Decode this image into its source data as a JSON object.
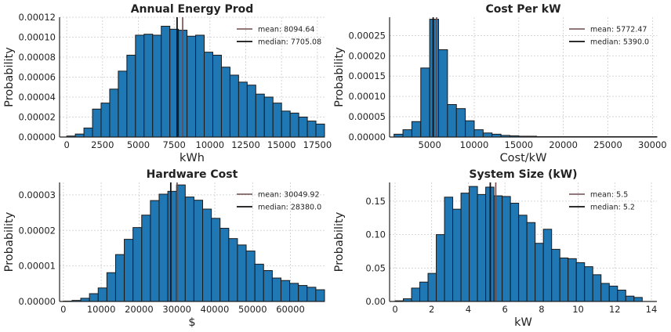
{
  "chart_data": [
    {
      "type": "histogram",
      "title": "Annual Energy Prod",
      "xlabel": "kWh",
      "ylabel": "Probability",
      "xlim": [
        -500,
        18000
      ],
      "ylim": [
        0,
        0.00012
      ],
      "xticks": [
        0,
        2500,
        5000,
        7500,
        10000,
        12500,
        15000,
        17500
      ],
      "xtick_labels": [
        "0",
        "2500",
        "5000",
        "7500",
        "10000",
        "12500",
        "15000",
        "17500"
      ],
      "yticks": [
        0,
        2e-05,
        4e-05,
        6e-05,
        8e-05,
        0.0001,
        0.00012
      ],
      "ytick_labels": [
        "0.00000",
        "0.00002",
        "0.00004",
        "0.00006",
        "0.00008",
        "0.00010",
        "0.00012"
      ],
      "bin_edges": [
        0,
        600,
        1200,
        1800,
        2400,
        3000,
        3600,
        4200,
        4800,
        5400,
        6000,
        6600,
        7200,
        7800,
        8400,
        9000,
        9600,
        10200,
        10800,
        11400,
        12000,
        12600,
        13200,
        13800,
        14400,
        15000,
        15600,
        16200,
        16800,
        17400,
        18000
      ],
      "values": [
        1e-06,
        3e-06,
        9e-06,
        2.8e-05,
        3.4e-05,
        4.8e-05,
        6.6e-05,
        8.2e-05,
        0.000102,
        0.000103,
        0.000102,
        0.000111,
        0.000108,
        0.000107,
        0.000101,
        0.000102,
        8.5e-05,
        8.2e-05,
        7e-05,
        6.2e-05,
        5.5e-05,
        5.2e-05,
        4.3e-05,
        4e-05,
        3.4e-05,
        2.6e-05,
        2.4e-05,
        2e-05,
        1.6e-05,
        1.3e-05
      ],
      "mean": 8094.64,
      "median": 7705.08,
      "legend": {
        "mean_label": "mean: 8094.64",
        "median_label": "median: 7705.08",
        "placement": "top-right"
      },
      "grid": true
    },
    {
      "type": "histogram",
      "title": "Cost Per kW",
      "xlabel": "Cost/kW",
      "ylabel": "Probability",
      "xlim": [
        500,
        30500
      ],
      "ylim": [
        0,
        0.000295
      ],
      "xticks": [
        5000,
        10000,
        15000,
        20000,
        25000,
        30000
      ],
      "xtick_labels": [
        "5000",
        "10000",
        "15000",
        "20000",
        "25000",
        "30000"
      ],
      "yticks": [
        0,
        5e-05,
        0.0001,
        0.00015,
        0.0002,
        0.00025
      ],
      "ytick_labels": [
        "0.00000",
        "0.00005",
        "0.00010",
        "0.00015",
        "0.00020",
        "0.00025"
      ],
      "bin_edges": [
        1000,
        2000,
        3000,
        4000,
        5000,
        6000,
        7000,
        8000,
        9000,
        10000,
        11000,
        12000,
        13000,
        14000,
        15000,
        16000,
        17000,
        18000,
        19000,
        20000,
        21000,
        22000,
        23000,
        24000,
        25000,
        26000,
        27000,
        28000,
        29000,
        30000,
        30500
      ],
      "values": [
        7e-06,
        1.8e-05,
        3.8e-05,
        0.00017,
        0.00029,
        0.000215,
        8e-05,
        7e-05,
        4e-05,
        1.8e-05,
        1e-05,
        7e-06,
        4e-06,
        3e-06,
        2e-06,
        2e-06,
        1e-06,
        1e-06,
        1e-06,
        1e-06,
        1e-06,
        1e-06,
        1e-06,
        1e-06,
        1e-06,
        1e-06,
        1e-06,
        1e-06,
        1e-06,
        1e-06
      ],
      "mean": 5772.47,
      "median": 5390.0,
      "legend": {
        "mean_label": "mean: 5772.47",
        "median_label": "median: 5390.0",
        "placement": "top-right"
      },
      "grid": true
    },
    {
      "type": "histogram",
      "title": "Hardware Cost",
      "xlabel": "$",
      "ylabel": "Probability",
      "xlim": [
        -1000,
        69000
      ],
      "ylim": [
        0,
        3.35e-05
      ],
      "xticks": [
        0,
        10000,
        20000,
        30000,
        40000,
        50000,
        60000
      ],
      "xtick_labels": [
        "0",
        "10000",
        "20000",
        "30000",
        "40000",
        "50000",
        "60000"
      ],
      "yticks": [
        0,
        1e-05,
        2e-05,
        3e-05
      ],
      "ytick_labels": [
        "0.00000",
        "0.00001",
        "0.00002",
        "0.00003"
      ],
      "bin_edges": [
        0,
        2300,
        4600,
        6900,
        9200,
        11500,
        13800,
        16100,
        18400,
        20700,
        23000,
        25300,
        27600,
        29900,
        32200,
        34500,
        36800,
        39100,
        41400,
        43700,
        46000,
        48300,
        50600,
        52900,
        55200,
        57500,
        59800,
        62100,
        64400,
        66700,
        69000
      ],
      "values": [
        1e-07,
        3e-07,
        9e-07,
        2.2e-06,
        3.8e-06,
        8.1e-06,
        1.32e-05,
        1.75e-05,
        2.08e-05,
        2.43e-05,
        2.84e-05,
        3.02e-05,
        3.1e-05,
        3.28e-05,
        2.94e-05,
        2.85e-05,
        2.6e-05,
        2.34e-05,
        2.06e-05,
        1.77e-05,
        1.59e-05,
        1.42e-05,
        1.05e-05,
        8.7e-06,
        6.6e-06,
        5.9e-06,
        5.1e-06,
        4.5e-06,
        4e-06,
        3.3e-06
      ],
      "mean": 30049.92,
      "median": 28380.0,
      "legend": {
        "mean_label": "mean: 30049.92",
        "median_label": "median: 28380.0",
        "placement": "top-right"
      },
      "grid": true
    },
    {
      "type": "histogram",
      "title": "System Size (kW)",
      "xlabel": "kW",
      "ylabel": "Probability",
      "xlim": [
        -0.3,
        14.3
      ],
      "ylim": [
        0,
        0.178
      ],
      "xticks": [
        0,
        2,
        4,
        6,
        8,
        10,
        12,
        14
      ],
      "xtick_labels": [
        "0",
        "2",
        "4",
        "6",
        "8",
        "10",
        "12",
        "14"
      ],
      "yticks": [
        0,
        0.05,
        0.1,
        0.15
      ],
      "ytick_labels": [
        "0.00",
        "0.05",
        "0.10",
        "0.15"
      ],
      "bin_edges": [
        0,
        0.45,
        0.9,
        1.35,
        1.8,
        2.25,
        2.7,
        3.15,
        3.6,
        4.05,
        4.5,
        4.95,
        5.4,
        5.85,
        6.3,
        6.75,
        7.2,
        7.65,
        8.1,
        8.55,
        9.0,
        9.45,
        9.9,
        10.35,
        10.8,
        11.25,
        11.7,
        12.15,
        12.6,
        13.05,
        13.5
      ],
      "values": [
        0.001,
        0.004,
        0.02,
        0.029,
        0.042,
        0.1,
        0.156,
        0.138,
        0.162,
        0.172,
        0.16,
        0.171,
        0.158,
        0.157,
        0.147,
        0.129,
        0.118,
        0.087,
        0.108,
        0.078,
        0.065,
        0.064,
        0.058,
        0.052,
        0.04,
        0.027,
        0.023,
        0.017,
        0.008,
        0.006
      ],
      "mean": 5.5,
      "median": 5.2,
      "legend": {
        "mean_label": "mean: 5.5",
        "median_label": "median: 5.2",
        "placement": "top-right"
      },
      "grid": true
    }
  ],
  "colors": {
    "bar_fill": "#1f77b4",
    "bar_edge": "#1a1a1a",
    "mean_line": "#6e4b4b",
    "median_line": "#111111"
  }
}
